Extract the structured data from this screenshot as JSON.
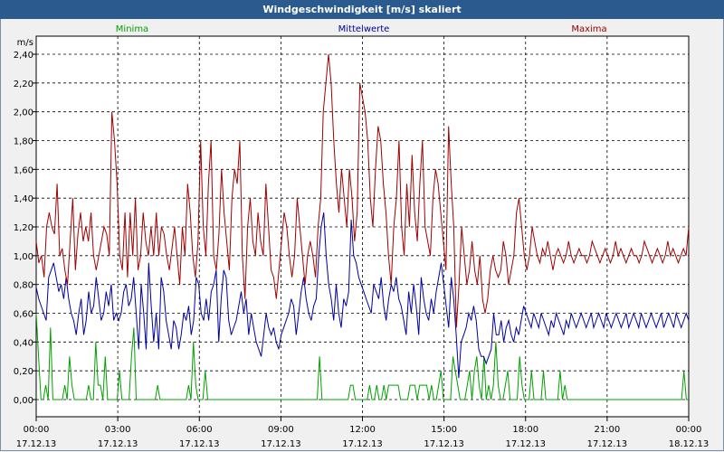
{
  "window": {
    "title": "Windgeschwindigkeit [m/s] skaliert"
  },
  "chart_data": {
    "type": "line",
    "title": "Windgeschwindigkeit [m/s] skaliert",
    "ylabel": "m/s",
    "xlabel": "",
    "ylim": [
      0,
      2.4
    ],
    "xlim": [
      0,
      24
    ],
    "grid": true,
    "y_ticks": [
      "0,00",
      "0,20",
      "0,40",
      "0,60",
      "0,80",
      "1,00",
      "1,20",
      "1,40",
      "1,60",
      "1,80",
      "2,00",
      "2,20",
      "2,40"
    ],
    "x_ticks": [
      {
        "time": "00:00",
        "date": "17.12.13"
      },
      {
        "time": "03:00",
        "date": "17.12.13"
      },
      {
        "time": "06:00",
        "date": "17.12.13"
      },
      {
        "time": "09:00",
        "date": "17.12.13"
      },
      {
        "time": "12:00",
        "date": "17.12.13"
      },
      {
        "time": "15:00",
        "date": "17.12.13"
      },
      {
        "time": "18:00",
        "date": "17.12.13"
      },
      {
        "time": "21:00",
        "date": "17.12.13"
      },
      {
        "time": "00:00",
        "date": "18.12.13"
      }
    ],
    "series": [
      {
        "name": "Minima",
        "color": "#00a000",
        "values": [
          0.6,
          0.3,
          0,
          0,
          0.1,
          0,
          0.5,
          0,
          0,
          0,
          0,
          0,
          0.1,
          0,
          0.3,
          0.1,
          0,
          0,
          0,
          0,
          0,
          0,
          0.1,
          0,
          0,
          0.4,
          0.1,
          0.1,
          0,
          0.3,
          0,
          0,
          0,
          0,
          0,
          0.2,
          0,
          0,
          0,
          0,
          0.3,
          0.5,
          0,
          0,
          0,
          0,
          0,
          0,
          0,
          0,
          0,
          0.1,
          0,
          0,
          0,
          0,
          0,
          0,
          0,
          0,
          0,
          0,
          0,
          0,
          0.1,
          0,
          0.4,
          0.1,
          0,
          0,
          0,
          0.2,
          0,
          0,
          0,
          0,
          0,
          0,
          0,
          0,
          0,
          0,
          0,
          0,
          0,
          0,
          0,
          0,
          0,
          0,
          0,
          0,
          0,
          0,
          0,
          0,
          0,
          0,
          0,
          0,
          0,
          0,
          0,
          0,
          0,
          0,
          0,
          0,
          0,
          0,
          0,
          0,
          0,
          0,
          0,
          0,
          0,
          0,
          0,
          0.3,
          0,
          0,
          0,
          0,
          0,
          0,
          0,
          0,
          0,
          0,
          0,
          0,
          0.1,
          0.1,
          0,
          0,
          0,
          0,
          0,
          0,
          0.1,
          0,
          0,
          0.1,
          0,
          0,
          0.1,
          0,
          0.1,
          0.1,
          0.1,
          0.1,
          0.1,
          0,
          0,
          0,
          0,
          0.1,
          0.1,
          0.1,
          0,
          0.1,
          0.1,
          0.1,
          0.1,
          0,
          0.1,
          0,
          0,
          0.1,
          0.2,
          0,
          0,
          0,
          0,
          0.3,
          0.2,
          0.1,
          0,
          0,
          0,
          0.1,
          0.2,
          0,
          0.2,
          0.3,
          0.1,
          0,
          0.3,
          0,
          0.1,
          0,
          0.1,
          0.4,
          0.1,
          0,
          0,
          0.1,
          0.2,
          0,
          0,
          0,
          0,
          0.3,
          0.1,
          0,
          0,
          0,
          0.2,
          0,
          0,
          0,
          0,
          0.2,
          0,
          0,
          0,
          0,
          0,
          0,
          0.2,
          0,
          0.1,
          0,
          0,
          0,
          0,
          0,
          0,
          0,
          0,
          0,
          0,
          0,
          0,
          0,
          0,
          0,
          0,
          0,
          0,
          0,
          0,
          0,
          0,
          0,
          0,
          0,
          0,
          0,
          0,
          0,
          0,
          0,
          0,
          0,
          0,
          0,
          0,
          0,
          0,
          0,
          0,
          0,
          0,
          0,
          0,
          0,
          0,
          0,
          0,
          0,
          0.2,
          0,
          0
        ]
      },
      {
        "name": "Mittelwerte",
        "color": "#0000a0",
        "values": [
          0.78,
          0.7,
          0.65,
          0.6,
          0.55,
          0.85,
          0.9,
          0.95,
          0.85,
          0.75,
          0.8,
          0.7,
          0.85,
          0.7,
          0.6,
          0.55,
          0.45,
          0.6,
          0.7,
          0.45,
          0.55,
          0.75,
          0.6,
          0.65,
          0.85,
          0.7,
          0.55,
          0.6,
          0.75,
          0.65,
          0.8,
          0.55,
          0.6,
          0.55,
          0.6,
          0.75,
          0.8,
          0.65,
          0.7,
          0.85,
          0.6,
          0.35,
          0.8,
          0.6,
          0.35,
          0.95,
          0.65,
          0.4,
          0.6,
          0.35,
          0.85,
          0.75,
          0.55,
          0.45,
          0.35,
          0.55,
          0.5,
          0.35,
          0.45,
          0.6,
          0.55,
          0.65,
          0.45,
          0.55,
          0.85,
          0.8,
          0.6,
          0.55,
          0.7,
          0.55,
          0.75,
          0.8,
          0.9,
          0.4,
          0.7,
          0.9,
          0.85,
          0.55,
          0.45,
          0.5,
          0.55,
          0.65,
          0.75,
          0.6,
          0.7,
          0.45,
          0.6,
          0.5,
          0.4,
          0.35,
          0.3,
          0.45,
          0.6,
          0.5,
          0.45,
          0.5,
          0.4,
          0.35,
          0.45,
          0.5,
          0.55,
          0.6,
          0.7,
          0.65,
          0.45,
          0.6,
          0.75,
          0.85,
          0.7,
          0.6,
          0.55,
          0.65,
          0.7,
          1.0,
          1.2,
          1.3,
          1.0,
          0.8,
          0.7,
          0.55,
          0.8,
          0.6,
          0.5,
          0.7,
          0.65,
          0.75,
          1.25,
          1.0,
          0.95,
          0.85,
          0.8,
          0.75,
          0.7,
          0.65,
          0.6,
          0.8,
          0.75,
          0.7,
          0.85,
          0.65,
          0.55,
          0.7,
          0.8,
          0.75,
          0.85,
          0.7,
          0.65,
          0.55,
          0.45,
          0.75,
          0.6,
          0.8,
          0.65,
          0.45,
          0.85,
          0.7,
          0.6,
          0.55,
          0.7,
          0.6,
          0.75,
          0.85,
          0.95,
          0.8,
          0.65,
          0.5,
          0.85,
          0.7,
          0.45,
          0.15,
          0.4,
          0.45,
          0.5,
          0.6,
          0.55,
          0.65,
          0.55,
          0.35,
          0.3,
          0.3,
          0.25,
          0.3,
          0.35,
          0.6,
          0.45,
          0.45,
          0.55,
          0.4,
          0.5,
          0.55,
          0.45,
          0.4,
          0.5,
          0.45,
          0.55,
          0.65,
          0.6,
          0.55,
          0.5,
          0.6,
          0.55,
          0.5,
          0.6,
          0.55,
          0.5,
          0.45,
          0.55,
          0.5,
          0.6,
          0.55,
          0.5,
          0.45,
          0.55,
          0.5,
          0.6,
          0.55,
          0.5,
          0.55,
          0.6,
          0.55,
          0.5,
          0.55,
          0.6,
          0.5,
          0.55,
          0.6,
          0.55,
          0.5,
          0.6,
          0.55,
          0.5,
          0.55,
          0.6,
          0.55,
          0.5,
          0.55,
          0.6,
          0.5,
          0.55,
          0.6,
          0.55,
          0.5,
          0.6,
          0.55,
          0.5,
          0.55,
          0.6,
          0.55,
          0.5,
          0.55,
          0.6,
          0.5,
          0.55,
          0.6,
          0.55,
          0.5,
          0.6,
          0.55,
          0.5,
          0.55,
          0.6,
          0.55
        ]
      },
      {
        "name": "Maxima",
        "color": "#a00000",
        "values": [
          1.1,
          0.95,
          1.0,
          0.85,
          1.2,
          1.3,
          1.2,
          1.15,
          1.5,
          1.0,
          1.05,
          0.9,
          0.8,
          1.1,
          1.4,
          0.9,
          1.15,
          1.3,
          1.1,
          1.2,
          1.1,
          1.3,
          1.0,
          0.9,
          1.0,
          1.1,
          1.2,
          1.15,
          1.0,
          2.0,
          1.8,
          1.5,
          1.0,
          0.9,
          1.3,
          0.85,
          1.3,
          1.0,
          1.4,
          0.9,
          1.0,
          1.3,
          1.1,
          1.0,
          1.2,
          1.0,
          1.3,
          1.0,
          1.2,
          1.15,
          1.0,
          0.9,
          1.05,
          1.2,
          1.0,
          0.8,
          1.2,
          1.0,
          1.5,
          1.3,
          1.0,
          0.85,
          1.1,
          1.8,
          1.2,
          1.0,
          1.5,
          1.8,
          1.0,
          0.9,
          1.15,
          1.6,
          1.3,
          1.1,
          0.9,
          1.4,
          1.6,
          1.5,
          1.8,
          1.0,
          0.7,
          1.2,
          1.4,
          1.1,
          1.0,
          1.3,
          1.1,
          1.0,
          1.5,
          1.2,
          0.9,
          0.85,
          0.7,
          0.9,
          1.1,
          1.3,
          1.2,
          1.0,
          0.85,
          1.0,
          1.4,
          1.2,
          1.0,
          0.8,
          1.0,
          1.1,
          1.0,
          0.85,
          1.2,
          1.4,
          2.0,
          2.2,
          2.4,
          2.2,
          1.8,
          1.5,
          1.3,
          1.6,
          1.4,
          1.2,
          1.6,
          1.4,
          1.1,
          1.3,
          2.2,
          2.1,
          2.0,
          1.8,
          1.4,
          1.2,
          1.6,
          1.9,
          1.8,
          1.5,
          1.3,
          1.0,
          0.8,
          1.2,
          1.4,
          1.8,
          1.2,
          1.0,
          1.5,
          1.2,
          1.7,
          1.3,
          1.1,
          1.5,
          1.8,
          1.2,
          1.1,
          1.0,
          1.4,
          1.6,
          1.5,
          1.3,
          1.1,
          0.9,
          1.9,
          1.5,
          1.2,
          0.5,
          0.8,
          1.2,
          1.0,
          0.8,
          0.9,
          1.1,
          0.9,
          0.8,
          1.0,
          0.7,
          0.6,
          0.7,
          0.9,
          1.0,
          0.9,
          0.85,
          0.9,
          1.1,
          1.0,
          0.8,
          0.9,
          1.0,
          1.3,
          1.4,
          1.2,
          1.0,
          0.9,
          1.0,
          1.2,
          1.1,
          1.0,
          0.95,
          1.05,
          1.0,
          1.1,
          1.0,
          0.9,
          1.0,
          1.05,
          1.0,
          0.95,
          1.0,
          1.1,
          1.0,
          0.95,
          1.0,
          1.05,
          1.0,
          1.0,
          0.95,
          1.0,
          1.1,
          1.05,
          1.0,
          0.95,
          1.0,
          1.05,
          1.0,
          0.95,
          1.0,
          1.1,
          1.0,
          1.05,
          1.0,
          0.95,
          1.0,
          1.05,
          1.0,
          1.0,
          0.95,
          1.0,
          1.1,
          1.05,
          1.0,
          0.95,
          1.0,
          1.05,
          1.0,
          0.95,
          1.0,
          1.1,
          1.0,
          1.05,
          1.0,
          0.95,
          1.0,
          1.05,
          1.0,
          1.2
        ]
      }
    ]
  }
}
